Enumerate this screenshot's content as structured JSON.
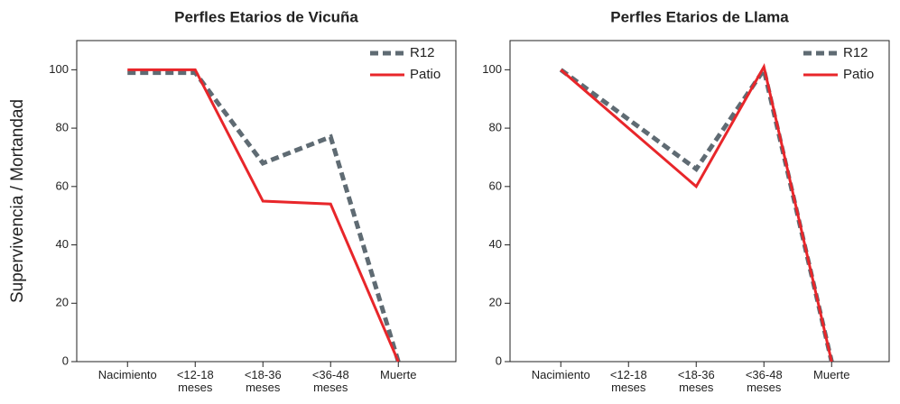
{
  "chart_data": [
    {
      "type": "line",
      "title": "Perfles Etarios de Vicuña",
      "y_label": "Supervivencia / Mortandad",
      "categories": [
        "Nacimiento",
        "<12-18 meses",
        "<18-36 meses",
        "<36-48 meses",
        "Muerte"
      ],
      "series": [
        {
          "name": "R12",
          "color": "#5f6b73",
          "dashed": true,
          "values": [
            99,
            99,
            68,
            77,
            0
          ]
        },
        {
          "name": "Patio",
          "color": "#e8262a",
          "dashed": false,
          "values": [
            100,
            100,
            55,
            54,
            0
          ]
        }
      ],
      "ylim": [
        0,
        110
      ],
      "yticks": [
        0,
        20,
        40,
        60,
        80,
        100
      ],
      "legend": "upper right"
    },
    {
      "type": "line",
      "title": "Perfles Etarios de Llama",
      "categories": [
        "Nacimiento",
        "<12-18 meses",
        "<18-36 meses",
        "<36-48 meses",
        "Muerte"
      ],
      "series": [
        {
          "name": "R12",
          "color": "#5f6b73",
          "dashed": true,
          "values": [
            100,
            83,
            66,
            100,
            0
          ]
        },
        {
          "name": "Patio",
          "color": "#e8262a",
          "dashed": false,
          "values": [
            100,
            80,
            60,
            101,
            0
          ]
        }
      ],
      "ylim": [
        0,
        110
      ],
      "yticks": [
        0,
        20,
        40,
        60,
        80,
        100
      ],
      "legend": "upper right"
    }
  ]
}
